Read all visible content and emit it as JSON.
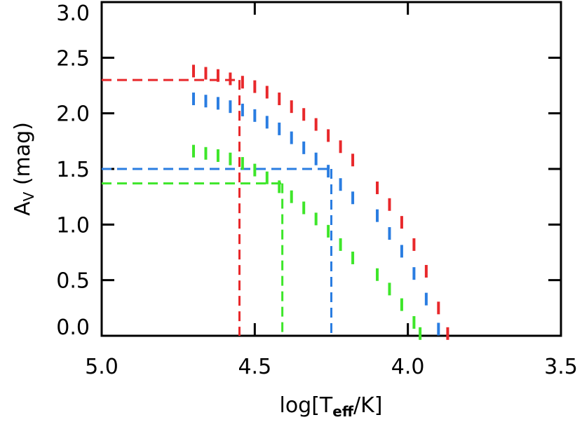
{
  "chart_data": {
    "type": "scatter",
    "xlabel": {
      "main": "log[T",
      "sub": "eff",
      "rest": "/K]"
    },
    "ylabel": {
      "main": "A",
      "sub": "V",
      "rest": " (mag)"
    },
    "xlim": [
      5.0,
      3.5
    ],
    "xticks": [
      {
        "value": 5.0,
        "label": "5.0"
      },
      4.5,
      {
        "value": 4.0,
        "label": "4.0"
      },
      3.5
    ],
    "ylim": [
      0,
      3.0
    ],
    "yticks": [
      {
        "value": 0,
        "label": "0.0"
      },
      0.5,
      {
        "value": 1.0,
        "label": "1.0"
      },
      1.5,
      {
        "value": 2.0,
        "label": "2.0"
      },
      2.5,
      {
        "value": 3.0,
        "label": "3.0"
      }
    ],
    "series": [
      {
        "color": "#e8282b",
        "x": [
          4.7,
          4.66,
          4.62,
          4.58,
          4.54,
          4.5,
          4.46,
          4.42,
          4.38,
          4.34,
          4.3,
          4.26,
          4.22,
          4.18,
          4.1,
          4.06,
          4.02,
          3.98,
          3.94,
          3.9,
          3.87
        ],
        "values": [
          2.38,
          2.36,
          2.34,
          2.31,
          2.28,
          2.24,
          2.19,
          2.13,
          2.06,
          1.99,
          1.9,
          1.8,
          1.7,
          1.58,
          1.33,
          1.18,
          1.02,
          0.82,
          0.58,
          0.25,
          0.02
        ]
      },
      {
        "color": "#2a7de1",
        "x": [
          4.7,
          4.66,
          4.62,
          4.58,
          4.54,
          4.5,
          4.46,
          4.42,
          4.38,
          4.34,
          4.3,
          4.26,
          4.22,
          4.18,
          4.1,
          4.06,
          4.02,
          3.98,
          3.94,
          3.9
        ],
        "values": [
          2.13,
          2.11,
          2.09,
          2.06,
          2.03,
          1.98,
          1.92,
          1.86,
          1.78,
          1.69,
          1.59,
          1.48,
          1.36,
          1.24,
          1.08,
          0.92,
          0.76,
          0.56,
          0.33,
          0.06
        ]
      },
      {
        "color": "#3ee62a",
        "x": [
          4.7,
          4.66,
          4.62,
          4.58,
          4.54,
          4.5,
          4.46,
          4.42,
          4.38,
          4.34,
          4.3,
          4.26,
          4.22,
          4.18,
          4.1,
          4.06,
          4.02,
          3.98,
          3.96
        ],
        "values": [
          1.66,
          1.64,
          1.62,
          1.59,
          1.55,
          1.49,
          1.42,
          1.34,
          1.25,
          1.15,
          1.05,
          0.94,
          0.82,
          0.7,
          0.55,
          0.42,
          0.28,
          0.12,
          0.02
        ]
      }
    ],
    "reference_lines": [
      {
        "color": "#e8282b",
        "x": 4.55,
        "y": 2.3
      },
      {
        "color": "#2a7de1",
        "x": 4.25,
        "y": 1.5
      },
      {
        "color": "#3ee62a",
        "x": 4.41,
        "y": 1.37
      }
    ]
  }
}
